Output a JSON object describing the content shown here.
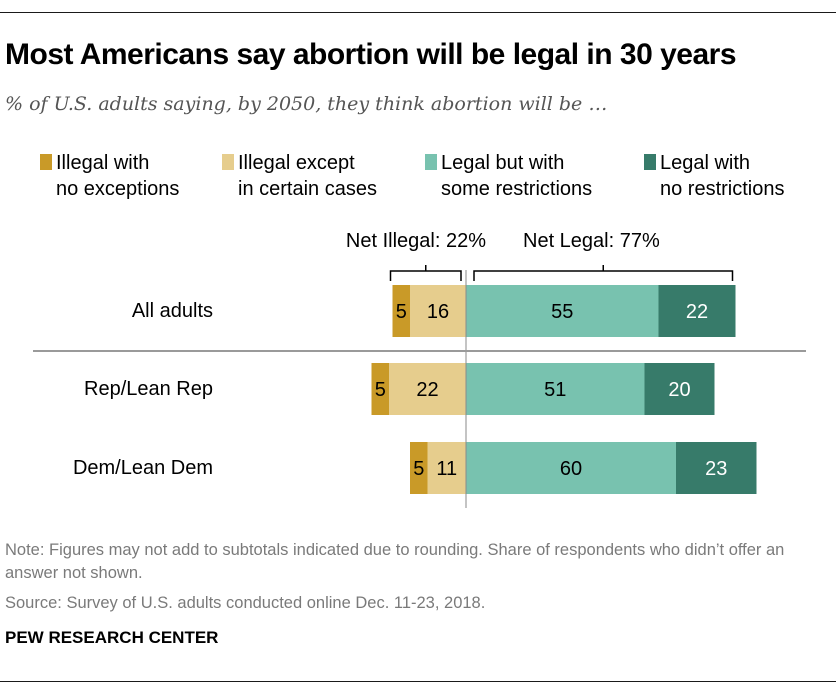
{
  "header": {
    "title": "Most Americans say abortion will be legal in 30 years",
    "subtitle": "% of U.S. adults saying, by 2050, they think abortion will be …"
  },
  "legend": [
    {
      "label": "Illegal with\nno exceptions",
      "color": "#C99A28"
    },
    {
      "label": "Illegal except\nin certain cases",
      "color": "#E6CD8D"
    },
    {
      "label": "Legal but with\nsome restrictions",
      "color": "#78C2AF"
    },
    {
      "label": "Legal with\nno restrictions",
      "color": "#377B6A"
    }
  ],
  "chart_data": {
    "type": "bar",
    "orientation": "horizontal-diverging",
    "stacked": true,
    "categories": [
      "All adults",
      "Rep/Lean Rep",
      "Dem/Lean Dem"
    ],
    "series": [
      {
        "name": "Illegal with no exceptions",
        "values": [
          5,
          5,
          5
        ],
        "color": "#C99A28",
        "side": "left"
      },
      {
        "name": "Illegal except in certain cases",
        "values": [
          16,
          22,
          11
        ],
        "color": "#E6CD8D",
        "side": "left"
      },
      {
        "name": "Legal but with some restrictions",
        "values": [
          55,
          51,
          60
        ],
        "color": "#78C2AF",
        "side": "right"
      },
      {
        "name": "Legal with no restrictions",
        "values": [
          22,
          20,
          23
        ],
        "color": "#377B6A",
        "side": "right"
      }
    ],
    "nets": [
      {
        "label": "Net Illegal: 22%",
        "side": "left",
        "value": 22
      },
      {
        "label": "Net Legal: 77%",
        "side": "right",
        "value": 77
      }
    ],
    "separator_after": "All adults",
    "label_colors": {
      "dark": "#000000",
      "light": "#ffffff"
    }
  },
  "footer": {
    "note": "Note: Figures may not add to subtotals indicated due to rounding. Share of respondents who didn’t offer an answer not shown.",
    "source": "Source: Survey of U.S. adults conducted online Dec. 11-23, 2018.",
    "brand": "PEW RESEARCH CENTER"
  }
}
